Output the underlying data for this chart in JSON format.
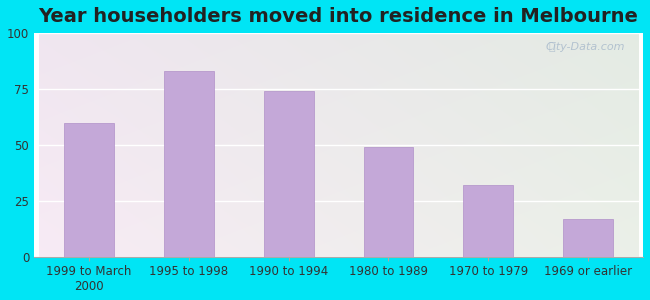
{
  "title": "Year householders moved into residence in Melbourne",
  "categories": [
    "1999 to March\n2000",
    "1995 to 1998",
    "1990 to 1994",
    "1980 to 1989",
    "1970 to 1979",
    "1969 or earlier"
  ],
  "values": [
    60,
    83,
    74,
    49,
    32,
    17
  ],
  "bar_color": "#c4a8d8",
  "bar_edgecolor": "#b090c8",
  "ylim": [
    0,
    100
  ],
  "yticks": [
    0,
    25,
    50,
    75,
    100
  ],
  "background_outer": "#00e5f5",
  "background_inner_topleft": "#d8edd8",
  "background_inner_topright": "#f0f0f8",
  "background_inner_bottom": "#f8fff8",
  "title_fontsize": 14,
  "tick_fontsize": 8.5,
  "watermark": "City-Data.com"
}
